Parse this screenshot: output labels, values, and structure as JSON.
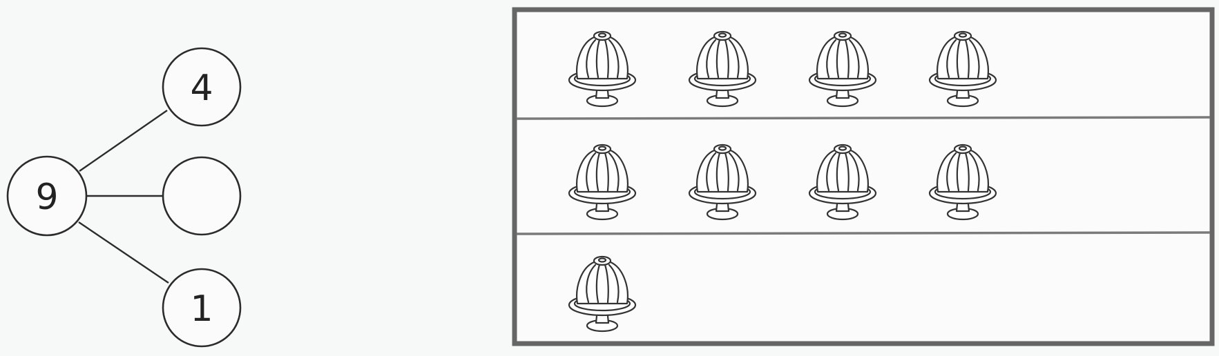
{
  "number_bond": {
    "whole": "9",
    "parts": [
      "4",
      "",
      "1"
    ]
  },
  "picture_rows": [
    {
      "count": 4,
      "item": "jelly-on-stand"
    },
    {
      "count": 4,
      "item": "jelly-on-stand"
    },
    {
      "count": 1,
      "item": "jelly-on-stand"
    }
  ],
  "colors": {
    "ink": "#2b2b2b",
    "frame": "#666666",
    "paper": "#f7f8f8"
  }
}
